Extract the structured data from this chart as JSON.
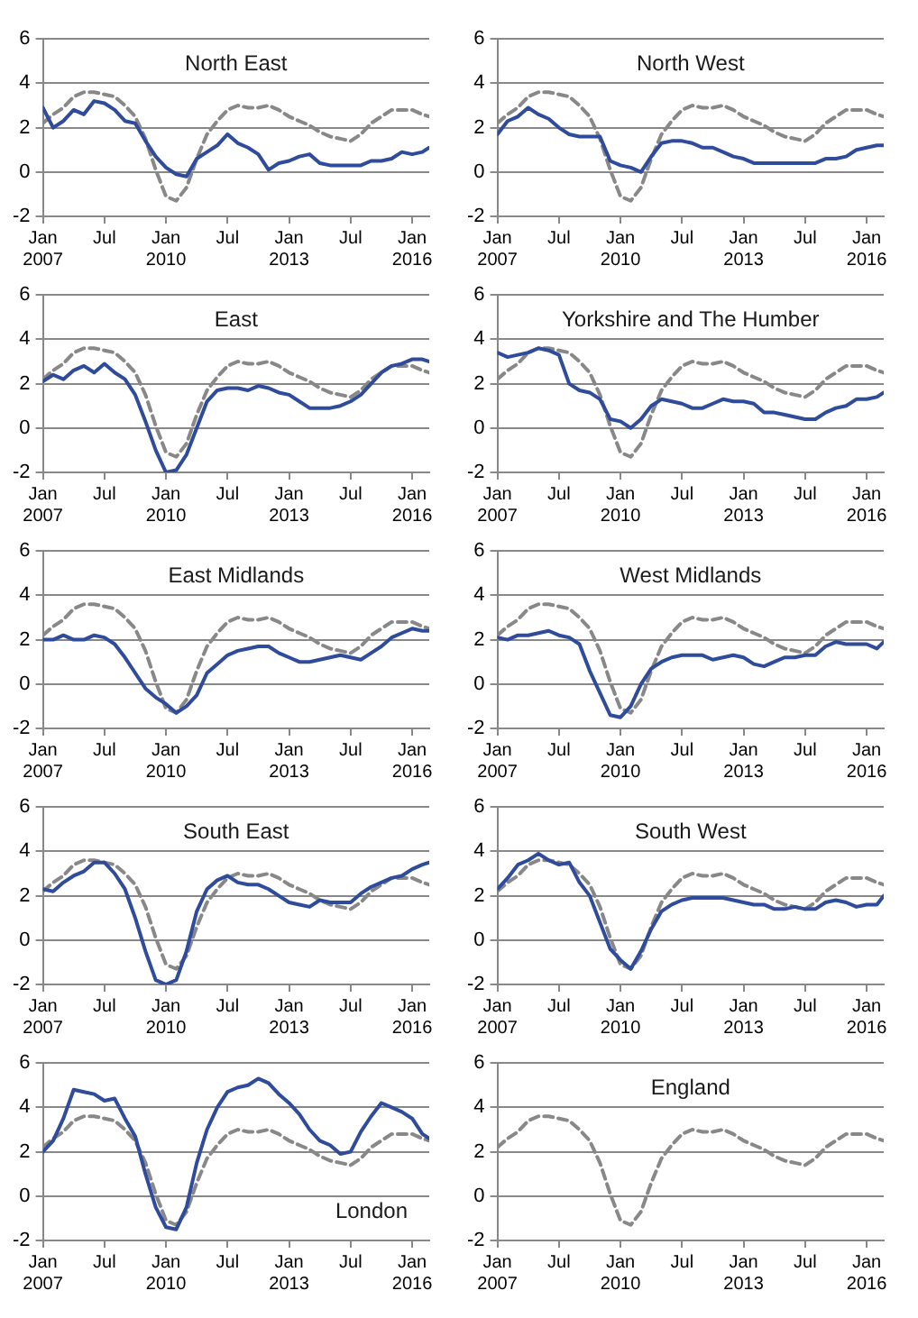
{
  "chart_data": [
    {
      "type": "line",
      "title": "North East",
      "x": [
        "2007-01",
        "2007-04",
        "2007-07",
        "2007-10",
        "2008-01",
        "2008-04",
        "2008-07",
        "2008-10",
        "2009-01",
        "2009-04",
        "2009-07",
        "2009-10",
        "2010-01",
        "2010-04",
        "2010-07",
        "2010-10",
        "2011-01",
        "2011-04",
        "2011-07",
        "2011-10",
        "2012-01",
        "2012-04",
        "2012-07",
        "2012-10",
        "2013-01",
        "2013-04",
        "2013-07",
        "2013-10",
        "2014-01",
        "2014-04",
        "2014-07",
        "2014-10",
        "2015-01",
        "2015-04",
        "2015-07",
        "2015-10",
        "2016-01",
        "2016-04",
        "2016-06"
      ],
      "xlim": [
        "2007-01",
        "2016-06"
      ],
      "xticks": [
        {
          "value": "2007-01",
          "label": "Jan 2007"
        },
        {
          "value": "2008-07",
          "label": "Jul"
        },
        {
          "value": "2010-01",
          "label": "Jan 2010"
        },
        {
          "value": "2011-07",
          "label": "Jul"
        },
        {
          "value": "2013-01",
          "label": "Jan 2013"
        },
        {
          "value": "2014-07",
          "label": "Jul"
        },
        {
          "value": "2016-01",
          "label": "Jan 2016"
        }
      ],
      "ylim": [
        -2,
        6
      ],
      "yticks": [
        -2,
        0,
        2,
        4,
        6
      ],
      "grid": "y",
      "series": [
        {
          "color": "#2f4b9b",
          "line_style": "solid",
          "values": [
            2.9,
            2.0,
            2.3,
            2.8,
            2.6,
            3.2,
            3.1,
            2.8,
            2.3,
            2.2,
            1.4,
            0.7,
            0.2,
            -0.1,
            -0.2,
            0.6,
            0.9,
            1.2,
            1.7,
            1.3,
            1.1,
            0.8,
            0.1,
            0.4,
            0.5,
            0.7,
            0.8,
            0.4,
            0.3,
            0.3,
            0.3,
            0.3,
            0.5,
            0.5,
            0.6,
            0.9,
            0.8,
            0.9,
            1.1
          ]
        },
        {
          "color": "#888888",
          "line_style": "dashed",
          "values": [
            2.2,
            2.6,
            2.9,
            3.4,
            3.6,
            3.6,
            3.5,
            3.4,
            3.0,
            2.5,
            1.5,
            0.1,
            -1.1,
            -1.3,
            -0.7,
            0.6,
            1.7,
            2.3,
            2.8,
            3.0,
            2.9,
            2.9,
            3.0,
            2.8,
            2.5,
            2.3,
            2.1,
            1.8,
            1.6,
            1.5,
            1.4,
            1.7,
            2.2,
            2.5,
            2.8,
            2.8,
            2.8,
            2.6,
            2.5
          ]
        }
      ]
    },
    {
      "type": "line",
      "title": "North West",
      "x": [
        "2007-01",
        "2007-04",
        "2007-07",
        "2007-10",
        "2008-01",
        "2008-04",
        "2008-07",
        "2008-10",
        "2009-01",
        "2009-04",
        "2009-07",
        "2009-10",
        "2010-01",
        "2010-04",
        "2010-07",
        "2010-10",
        "2011-01",
        "2011-04",
        "2011-07",
        "2011-10",
        "2012-01",
        "2012-04",
        "2012-07",
        "2012-10",
        "2013-01",
        "2013-04",
        "2013-07",
        "2013-10",
        "2014-01",
        "2014-04",
        "2014-07",
        "2014-10",
        "2015-01",
        "2015-04",
        "2015-07",
        "2015-10",
        "2016-01",
        "2016-04",
        "2016-06"
      ],
      "xlim": [
        "2007-01",
        "2016-06"
      ],
      "xticks": [
        {
          "value": "2007-01",
          "label": "Jan 2007"
        },
        {
          "value": "2008-07",
          "label": "Jul"
        },
        {
          "value": "2010-01",
          "label": "Jan 2010"
        },
        {
          "value": "2011-07",
          "label": "Jul"
        },
        {
          "value": "2013-01",
          "label": "Jan 2013"
        },
        {
          "value": "2014-07",
          "label": "Jul"
        },
        {
          "value": "2016-01",
          "label": "Jan 2016"
        }
      ],
      "ylim": [
        -2,
        6
      ],
      "yticks": [
        -2,
        0,
        2,
        4,
        6
      ],
      "grid": "y",
      "series": [
        {
          "color": "#2f4b9b",
          "line_style": "solid",
          "values": [
            1.7,
            2.3,
            2.5,
            2.9,
            2.6,
            2.4,
            2.0,
            1.7,
            1.6,
            1.6,
            1.6,
            0.5,
            0.3,
            0.2,
            0.0,
            0.7,
            1.3,
            1.4,
            1.4,
            1.3,
            1.1,
            1.1,
            0.9,
            0.7,
            0.6,
            0.4,
            0.4,
            0.4,
            0.4,
            0.4,
            0.4,
            0.4,
            0.6,
            0.6,
            0.7,
            1.0,
            1.1,
            1.2,
            1.2
          ]
        },
        {
          "color": "#888888",
          "line_style": "dashed",
          "values": [
            2.2,
            2.6,
            2.9,
            3.4,
            3.6,
            3.6,
            3.5,
            3.4,
            3.0,
            2.5,
            1.5,
            0.1,
            -1.1,
            -1.3,
            -0.7,
            0.6,
            1.7,
            2.3,
            2.8,
            3.0,
            2.9,
            2.9,
            3.0,
            2.8,
            2.5,
            2.3,
            2.1,
            1.8,
            1.6,
            1.5,
            1.4,
            1.7,
            2.2,
            2.5,
            2.8,
            2.8,
            2.8,
            2.6,
            2.5
          ]
        }
      ]
    },
    {
      "type": "line",
      "title": "East",
      "x": [
        "2007-01",
        "2007-04",
        "2007-07",
        "2007-10",
        "2008-01",
        "2008-04",
        "2008-07",
        "2008-10",
        "2009-01",
        "2009-04",
        "2009-07",
        "2009-10",
        "2010-01",
        "2010-04",
        "2010-07",
        "2010-10",
        "2011-01",
        "2011-04",
        "2011-07",
        "2011-10",
        "2012-01",
        "2012-04",
        "2012-07",
        "2012-10",
        "2013-01",
        "2013-04",
        "2013-07",
        "2013-10",
        "2014-01",
        "2014-04",
        "2014-07",
        "2014-10",
        "2015-01",
        "2015-04",
        "2015-07",
        "2015-10",
        "2016-01",
        "2016-04",
        "2016-06"
      ],
      "xlim": [
        "2007-01",
        "2016-06"
      ],
      "xticks": [
        {
          "value": "2007-01",
          "label": "Jan 2007"
        },
        {
          "value": "2008-07",
          "label": "Jul"
        },
        {
          "value": "2010-01",
          "label": "Jan 2010"
        },
        {
          "value": "2011-07",
          "label": "Jul"
        },
        {
          "value": "2013-01",
          "label": "Jan 2013"
        },
        {
          "value": "2014-07",
          "label": "Jul"
        },
        {
          "value": "2016-01",
          "label": "Jan 2016"
        }
      ],
      "ylim": [
        -2,
        6
      ],
      "yticks": [
        -2,
        0,
        2,
        4,
        6
      ],
      "grid": "y",
      "series": [
        {
          "color": "#2f4b9b",
          "line_style": "solid",
          "values": [
            2.1,
            2.4,
            2.2,
            2.6,
            2.8,
            2.5,
            2.9,
            2.5,
            2.2,
            1.5,
            0.3,
            -1.0,
            -2.0,
            -1.9,
            -1.2,
            0.0,
            1.2,
            1.7,
            1.8,
            1.8,
            1.7,
            1.9,
            1.8,
            1.6,
            1.5,
            1.2,
            0.9,
            0.9,
            0.9,
            1.0,
            1.2,
            1.5,
            2.0,
            2.5,
            2.8,
            2.9,
            3.1,
            3.1,
            3.0
          ]
        },
        {
          "color": "#888888",
          "line_style": "dashed",
          "values": [
            2.2,
            2.6,
            2.9,
            3.4,
            3.6,
            3.6,
            3.5,
            3.4,
            3.0,
            2.5,
            1.5,
            0.1,
            -1.1,
            -1.3,
            -0.7,
            0.6,
            1.7,
            2.3,
            2.8,
            3.0,
            2.9,
            2.9,
            3.0,
            2.8,
            2.5,
            2.3,
            2.1,
            1.8,
            1.6,
            1.5,
            1.4,
            1.7,
            2.2,
            2.5,
            2.8,
            2.8,
            2.8,
            2.6,
            2.5
          ]
        }
      ]
    },
    {
      "type": "line",
      "title": "Yorkshire and The Humber",
      "x": [
        "2007-01",
        "2007-04",
        "2007-07",
        "2007-10",
        "2008-01",
        "2008-04",
        "2008-07",
        "2008-10",
        "2009-01",
        "2009-04",
        "2009-07",
        "2009-10",
        "2010-01",
        "2010-04",
        "2010-07",
        "2010-10",
        "2011-01",
        "2011-04",
        "2011-07",
        "2011-10",
        "2012-01",
        "2012-04",
        "2012-07",
        "2012-10",
        "2013-01",
        "2013-04",
        "2013-07",
        "2013-10",
        "2014-01",
        "2014-04",
        "2014-07",
        "2014-10",
        "2015-01",
        "2015-04",
        "2015-07",
        "2015-10",
        "2016-01",
        "2016-04",
        "2016-06"
      ],
      "xlim": [
        "2007-01",
        "2016-06"
      ],
      "xticks": [
        {
          "value": "2007-01",
          "label": "Jan 2007"
        },
        {
          "value": "2008-07",
          "label": "Jul"
        },
        {
          "value": "2010-01",
          "label": "Jan 2010"
        },
        {
          "value": "2011-07",
          "label": "Jul"
        },
        {
          "value": "2013-01",
          "label": "Jan 2013"
        },
        {
          "value": "2014-07",
          "label": "Jul"
        },
        {
          "value": "2016-01",
          "label": "Jan 2016"
        }
      ],
      "ylim": [
        -2,
        6
      ],
      "yticks": [
        -2,
        0,
        2,
        4,
        6
      ],
      "grid": "y",
      "series": [
        {
          "color": "#2f4b9b",
          "line_style": "solid",
          "values": [
            3.4,
            3.2,
            3.3,
            3.4,
            3.6,
            3.5,
            3.3,
            2.0,
            1.7,
            1.6,
            1.3,
            0.4,
            0.3,
            0.0,
            0.4,
            1.0,
            1.3,
            1.2,
            1.1,
            0.9,
            0.9,
            1.1,
            1.3,
            1.2,
            1.2,
            1.1,
            0.7,
            0.7,
            0.6,
            0.5,
            0.4,
            0.4,
            0.7,
            0.9,
            1.0,
            1.3,
            1.3,
            1.4,
            1.6
          ]
        },
        {
          "color": "#888888",
          "line_style": "dashed",
          "values": [
            2.2,
            2.6,
            2.9,
            3.4,
            3.6,
            3.6,
            3.5,
            3.4,
            3.0,
            2.5,
            1.5,
            0.1,
            -1.1,
            -1.3,
            -0.7,
            0.6,
            1.7,
            2.3,
            2.8,
            3.0,
            2.9,
            2.9,
            3.0,
            2.8,
            2.5,
            2.3,
            2.1,
            1.8,
            1.6,
            1.5,
            1.4,
            1.7,
            2.2,
            2.5,
            2.8,
            2.8,
            2.8,
            2.6,
            2.5
          ]
        }
      ]
    },
    {
      "type": "line",
      "title": "East Midlands",
      "x": [
        "2007-01",
        "2007-04",
        "2007-07",
        "2007-10",
        "2008-01",
        "2008-04",
        "2008-07",
        "2008-10",
        "2009-01",
        "2009-04",
        "2009-07",
        "2009-10",
        "2010-01",
        "2010-04",
        "2010-07",
        "2010-10",
        "2011-01",
        "2011-04",
        "2011-07",
        "2011-10",
        "2012-01",
        "2012-04",
        "2012-07",
        "2012-10",
        "2013-01",
        "2013-04",
        "2013-07",
        "2013-10",
        "2014-01",
        "2014-04",
        "2014-07",
        "2014-10",
        "2015-01",
        "2015-04",
        "2015-07",
        "2015-10",
        "2016-01",
        "2016-04",
        "2016-06"
      ],
      "xlim": [
        "2007-01",
        "2016-06"
      ],
      "xticks": [
        {
          "value": "2007-01",
          "label": "Jan 2007"
        },
        {
          "value": "2008-07",
          "label": "Jul"
        },
        {
          "value": "2010-01",
          "label": "Jan 2010"
        },
        {
          "value": "2011-07",
          "label": "Jul"
        },
        {
          "value": "2013-01",
          "label": "Jan 2013"
        },
        {
          "value": "2014-07",
          "label": "Jul"
        },
        {
          "value": "2016-01",
          "label": "Jan 2016"
        }
      ],
      "ylim": [
        -2,
        6
      ],
      "yticks": [
        -2,
        0,
        2,
        4,
        6
      ],
      "grid": "y",
      "series": [
        {
          "color": "#2f4b9b",
          "line_style": "solid",
          "values": [
            2.0,
            2.0,
            2.2,
            2.0,
            2.0,
            2.2,
            2.1,
            1.8,
            1.2,
            0.5,
            -0.2,
            -0.6,
            -0.9,
            -1.3,
            -1.0,
            -0.5,
            0.5,
            0.9,
            1.3,
            1.5,
            1.6,
            1.7,
            1.7,
            1.4,
            1.2,
            1.0,
            1.0,
            1.1,
            1.2,
            1.3,
            1.2,
            1.1,
            1.4,
            1.7,
            2.1,
            2.3,
            2.5,
            2.4,
            2.4
          ]
        },
        {
          "color": "#888888",
          "line_style": "dashed",
          "values": [
            2.2,
            2.6,
            2.9,
            3.4,
            3.6,
            3.6,
            3.5,
            3.4,
            3.0,
            2.5,
            1.5,
            0.1,
            -1.1,
            -1.3,
            -0.7,
            0.6,
            1.7,
            2.3,
            2.8,
            3.0,
            2.9,
            2.9,
            3.0,
            2.8,
            2.5,
            2.3,
            2.1,
            1.8,
            1.6,
            1.5,
            1.4,
            1.7,
            2.2,
            2.5,
            2.8,
            2.8,
            2.8,
            2.6,
            2.5
          ]
        }
      ]
    },
    {
      "type": "line",
      "title": "West Midlands",
      "x": [
        "2007-01",
        "2007-04",
        "2007-07",
        "2007-10",
        "2008-01",
        "2008-04",
        "2008-07",
        "2008-10",
        "2009-01",
        "2009-04",
        "2009-07",
        "2009-10",
        "2010-01",
        "2010-04",
        "2010-07",
        "2010-10",
        "2011-01",
        "2011-04",
        "2011-07",
        "2011-10",
        "2012-01",
        "2012-04",
        "2012-07",
        "2012-10",
        "2013-01",
        "2013-04",
        "2013-07",
        "2013-10",
        "2014-01",
        "2014-04",
        "2014-07",
        "2014-10",
        "2015-01",
        "2015-04",
        "2015-07",
        "2015-10",
        "2016-01",
        "2016-04",
        "2016-06"
      ],
      "xlim": [
        "2007-01",
        "2016-06"
      ],
      "xticks": [
        {
          "value": "2007-01",
          "label": "Jan 2007"
        },
        {
          "value": "2008-07",
          "label": "Jul"
        },
        {
          "value": "2010-01",
          "label": "Jan 2010"
        },
        {
          "value": "2011-07",
          "label": "Jul"
        },
        {
          "value": "2013-01",
          "label": "Jan 2013"
        },
        {
          "value": "2014-07",
          "label": "Jul"
        },
        {
          "value": "2016-01",
          "label": "Jan 2016"
        }
      ],
      "ylim": [
        -2,
        6
      ],
      "yticks": [
        -2,
        0,
        2,
        4,
        6
      ],
      "grid": "y",
      "series": [
        {
          "color": "#2f4b9b",
          "line_style": "solid",
          "values": [
            2.1,
            2.0,
            2.2,
            2.2,
            2.3,
            2.4,
            2.2,
            2.1,
            1.8,
            0.6,
            -0.4,
            -1.4,
            -1.5,
            -1.0,
            0.0,
            0.7,
            1.0,
            1.2,
            1.3,
            1.3,
            1.3,
            1.1,
            1.2,
            1.3,
            1.2,
            0.9,
            0.8,
            1.0,
            1.2,
            1.2,
            1.3,
            1.3,
            1.7,
            1.9,
            1.8,
            1.8,
            1.8,
            1.6,
            1.9
          ]
        },
        {
          "color": "#888888",
          "line_style": "dashed",
          "values": [
            2.2,
            2.6,
            2.9,
            3.4,
            3.6,
            3.6,
            3.5,
            3.4,
            3.0,
            2.5,
            1.5,
            0.1,
            -1.1,
            -1.3,
            -0.7,
            0.6,
            1.7,
            2.3,
            2.8,
            3.0,
            2.9,
            2.9,
            3.0,
            2.8,
            2.5,
            2.3,
            2.1,
            1.8,
            1.6,
            1.5,
            1.4,
            1.7,
            2.2,
            2.5,
            2.8,
            2.8,
            2.8,
            2.6,
            2.5
          ]
        }
      ]
    },
    {
      "type": "line",
      "title": "South East",
      "x": [
        "2007-01",
        "2007-04",
        "2007-07",
        "2007-10",
        "2008-01",
        "2008-04",
        "2008-07",
        "2008-10",
        "2009-01",
        "2009-04",
        "2009-07",
        "2009-10",
        "2010-01",
        "2010-04",
        "2010-07",
        "2010-10",
        "2011-01",
        "2011-04",
        "2011-07",
        "2011-10",
        "2012-01",
        "2012-04",
        "2012-07",
        "2012-10",
        "2013-01",
        "2013-04",
        "2013-07",
        "2013-10",
        "2014-01",
        "2014-04",
        "2014-07",
        "2014-10",
        "2015-01",
        "2015-04",
        "2015-07",
        "2015-10",
        "2016-01",
        "2016-04",
        "2016-06"
      ],
      "xlim": [
        "2007-01",
        "2016-06"
      ],
      "xticks": [
        {
          "value": "2007-01",
          "label": "Jan 2007"
        },
        {
          "value": "2008-07",
          "label": "Jul"
        },
        {
          "value": "2010-01",
          "label": "Jan 2010"
        },
        {
          "value": "2011-07",
          "label": "Jul"
        },
        {
          "value": "2013-01",
          "label": "Jan 2013"
        },
        {
          "value": "2014-07",
          "label": "Jul"
        },
        {
          "value": "2016-01",
          "label": "Jan 2016"
        }
      ],
      "ylim": [
        -2,
        6
      ],
      "yticks": [
        -2,
        0,
        2,
        4,
        6
      ],
      "grid": "y",
      "series": [
        {
          "color": "#2f4b9b",
          "line_style": "solid",
          "values": [
            2.3,
            2.2,
            2.6,
            2.9,
            3.1,
            3.5,
            3.5,
            3.0,
            2.3,
            1.0,
            -0.5,
            -1.8,
            -2.0,
            -1.8,
            -0.5,
            1.3,
            2.3,
            2.7,
            2.9,
            2.6,
            2.5,
            2.5,
            2.3,
            2.0,
            1.7,
            1.6,
            1.5,
            1.8,
            1.7,
            1.7,
            1.7,
            2.1,
            2.4,
            2.6,
            2.8,
            2.9,
            3.2,
            3.4,
            3.5
          ]
        },
        {
          "color": "#888888",
          "line_style": "dashed",
          "values": [
            2.2,
            2.6,
            2.9,
            3.4,
            3.6,
            3.6,
            3.5,
            3.4,
            3.0,
            2.5,
            1.5,
            0.1,
            -1.1,
            -1.3,
            -0.7,
            0.6,
            1.7,
            2.3,
            2.8,
            3.0,
            2.9,
            2.9,
            3.0,
            2.8,
            2.5,
            2.3,
            2.1,
            1.8,
            1.6,
            1.5,
            1.4,
            1.7,
            2.2,
            2.5,
            2.8,
            2.8,
            2.8,
            2.6,
            2.5
          ]
        }
      ]
    },
    {
      "type": "line",
      "title": "South West",
      "x": [
        "2007-01",
        "2007-04",
        "2007-07",
        "2007-10",
        "2008-01",
        "2008-04",
        "2008-07",
        "2008-10",
        "2009-01",
        "2009-04",
        "2009-07",
        "2009-10",
        "2010-01",
        "2010-04",
        "2010-07",
        "2010-10",
        "2011-01",
        "2011-04",
        "2011-07",
        "2011-10",
        "2012-01",
        "2012-04",
        "2012-07",
        "2012-10",
        "2013-01",
        "2013-04",
        "2013-07",
        "2013-10",
        "2014-01",
        "2014-04",
        "2014-07",
        "2014-10",
        "2015-01",
        "2015-04",
        "2015-07",
        "2015-10",
        "2016-01",
        "2016-04",
        "2016-06"
      ],
      "xlim": [
        "2007-01",
        "2016-06"
      ],
      "xticks": [
        {
          "value": "2007-01",
          "label": "Jan 2007"
        },
        {
          "value": "2008-07",
          "label": "Jul"
        },
        {
          "value": "2010-01",
          "label": "Jan 2010"
        },
        {
          "value": "2011-07",
          "label": "Jul"
        },
        {
          "value": "2013-01",
          "label": "Jan 2013"
        },
        {
          "value": "2014-07",
          "label": "Jul"
        },
        {
          "value": "2016-01",
          "label": "Jan 2016"
        }
      ],
      "ylim": [
        -2,
        6
      ],
      "yticks": [
        -2,
        0,
        2,
        4,
        6
      ],
      "grid": "y",
      "series": [
        {
          "color": "#2f4b9b",
          "line_style": "solid",
          "values": [
            2.3,
            2.8,
            3.4,
            3.6,
            3.9,
            3.6,
            3.4,
            3.5,
            2.6,
            2.0,
            0.8,
            -0.4,
            -0.9,
            -1.3,
            -0.5,
            0.5,
            1.3,
            1.6,
            1.8,
            1.9,
            1.9,
            1.9,
            1.9,
            1.8,
            1.7,
            1.6,
            1.6,
            1.4,
            1.4,
            1.5,
            1.4,
            1.4,
            1.7,
            1.8,
            1.7,
            1.5,
            1.6,
            1.6,
            2.0
          ]
        },
        {
          "color": "#888888",
          "line_style": "dashed",
          "values": [
            2.2,
            2.6,
            2.9,
            3.4,
            3.6,
            3.6,
            3.5,
            3.4,
            3.0,
            2.5,
            1.5,
            0.1,
            -1.1,
            -1.3,
            -0.7,
            0.6,
            1.7,
            2.3,
            2.8,
            3.0,
            2.9,
            2.9,
            3.0,
            2.8,
            2.5,
            2.3,
            2.1,
            1.8,
            1.6,
            1.5,
            1.4,
            1.7,
            2.2,
            2.5,
            2.8,
            2.8,
            2.8,
            2.6,
            2.5
          ]
        }
      ]
    },
    {
      "type": "line",
      "title": "London",
      "x": [
        "2007-01",
        "2007-04",
        "2007-07",
        "2007-10",
        "2008-01",
        "2008-04",
        "2008-07",
        "2008-10",
        "2009-01",
        "2009-04",
        "2009-07",
        "2009-10",
        "2010-01",
        "2010-04",
        "2010-07",
        "2010-10",
        "2011-01",
        "2011-04",
        "2011-07",
        "2011-10",
        "2012-01",
        "2012-04",
        "2012-07",
        "2012-10",
        "2013-01",
        "2013-04",
        "2013-07",
        "2013-10",
        "2014-01",
        "2014-04",
        "2014-07",
        "2014-10",
        "2015-01",
        "2015-04",
        "2015-07",
        "2015-10",
        "2016-01",
        "2016-04",
        "2016-06"
      ],
      "xlim": [
        "2007-01",
        "2016-06"
      ],
      "xticks": [
        {
          "value": "2007-01",
          "label": "Jan 2007"
        },
        {
          "value": "2008-07",
          "label": "Jul"
        },
        {
          "value": "2010-01",
          "label": "Jan 2010"
        },
        {
          "value": "2011-07",
          "label": "Jul"
        },
        {
          "value": "2013-01",
          "label": "Jan 2013"
        },
        {
          "value": "2014-07",
          "label": "Jul"
        },
        {
          "value": "2016-01",
          "label": "Jan 2016"
        }
      ],
      "ylim": [
        -2,
        6
      ],
      "yticks": [
        -2,
        0,
        2,
        4,
        6
      ],
      "grid": "y",
      "series": [
        {
          "color": "#2f4b9b",
          "line_style": "solid",
          "values": [
            2.0,
            2.5,
            3.5,
            4.8,
            4.7,
            4.6,
            4.3,
            4.4,
            3.5,
            2.7,
            1.0,
            -0.5,
            -1.4,
            -1.5,
            -0.5,
            1.5,
            3.0,
            4.0,
            4.7,
            4.9,
            5.0,
            5.3,
            5.1,
            4.6,
            4.2,
            3.7,
            3.0,
            2.5,
            2.3,
            1.9,
            2.0,
            2.9,
            3.6,
            4.2,
            4.0,
            3.8,
            3.5,
            2.8,
            2.6
          ]
        },
        {
          "color": "#888888",
          "line_style": "dashed",
          "values": [
            2.2,
            2.6,
            2.9,
            3.4,
            3.6,
            3.6,
            3.5,
            3.4,
            3.0,
            2.5,
            1.5,
            0.1,
            -1.1,
            -1.3,
            -0.7,
            0.6,
            1.7,
            2.3,
            2.8,
            3.0,
            2.9,
            2.9,
            3.0,
            2.8,
            2.5,
            2.3,
            2.1,
            1.8,
            1.6,
            1.5,
            1.4,
            1.7,
            2.2,
            2.5,
            2.8,
            2.8,
            2.8,
            2.6,
            2.5
          ]
        }
      ]
    },
    {
      "type": "line",
      "title": "England",
      "x": [
        "2007-01",
        "2007-04",
        "2007-07",
        "2007-10",
        "2008-01",
        "2008-04",
        "2008-07",
        "2008-10",
        "2009-01",
        "2009-04",
        "2009-07",
        "2009-10",
        "2010-01",
        "2010-04",
        "2010-07",
        "2010-10",
        "2011-01",
        "2011-04",
        "2011-07",
        "2011-10",
        "2012-01",
        "2012-04",
        "2012-07",
        "2012-10",
        "2013-01",
        "2013-04",
        "2013-07",
        "2013-10",
        "2014-01",
        "2014-04",
        "2014-07",
        "2014-10",
        "2015-01",
        "2015-04",
        "2015-07",
        "2015-10",
        "2016-01",
        "2016-04",
        "2016-06"
      ],
      "xlim": [
        "2007-01",
        "2016-06"
      ],
      "xticks": [
        {
          "value": "2007-01",
          "label": "Jan 2007"
        },
        {
          "value": "2008-07",
          "label": "Jul"
        },
        {
          "value": "2010-01",
          "label": "Jan 2010"
        },
        {
          "value": "2011-07",
          "label": "Jul"
        },
        {
          "value": "2013-01",
          "label": "Jan 2013"
        },
        {
          "value": "2014-07",
          "label": "Jul"
        },
        {
          "value": "2016-01",
          "label": "Jan 2016"
        }
      ],
      "ylim": [
        -2,
        6
      ],
      "yticks": [
        -2,
        0,
        2,
        4,
        6
      ],
      "grid": "y",
      "series": [
        {
          "color": "#888888",
          "line_style": "dashed",
          "values": [
            2.2,
            2.6,
            2.9,
            3.4,
            3.6,
            3.6,
            3.5,
            3.4,
            3.0,
            2.5,
            1.5,
            0.1,
            -1.1,
            -1.3,
            -0.7,
            0.6,
            1.7,
            2.3,
            2.8,
            3.0,
            2.9,
            2.9,
            3.0,
            2.8,
            2.5,
            2.3,
            2.1,
            1.8,
            1.6,
            1.5,
            1.4,
            1.7,
            2.2,
            2.5,
            2.8,
            2.8,
            2.8,
            2.6,
            2.5
          ]
        }
      ]
    }
  ]
}
